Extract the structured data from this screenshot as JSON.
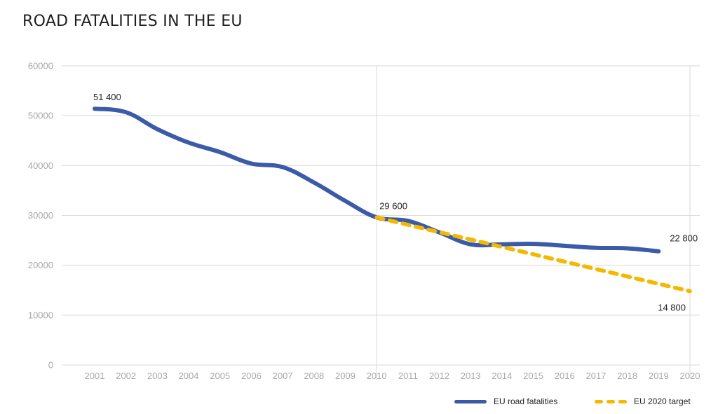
{
  "chart_data": {
    "type": "line",
    "title": "ROAD FATALITIES IN THE EU",
    "xlabel": "",
    "ylabel": "",
    "x": [
      "2001",
      "2002",
      "2003",
      "2004",
      "2005",
      "2006",
      "2007",
      "2008",
      "2009",
      "2010",
      "2011",
      "2012",
      "2013",
      "2014",
      "2015",
      "2016",
      "2017",
      "2018",
      "2019",
      "2020"
    ],
    "ylim": [
      0,
      60000
    ],
    "yticks": [
      "0",
      "10000",
      "20000",
      "30000",
      "40000",
      "50000",
      "60000"
    ],
    "grid": "horizontal",
    "vertical_reference_years": [
      "2010",
      "2020"
    ],
    "series": [
      {
        "name": "EU road fatalities",
        "color": "#3b5ba9",
        "style": "solid",
        "values": [
          51400,
          50700,
          47300,
          44600,
          42700,
          40400,
          39700,
          36600,
          32900,
          29600,
          28900,
          26600,
          24200,
          24200,
          24300,
          23900,
          23500,
          23400,
          22800,
          null
        ]
      },
      {
        "name": "EU 2020 target",
        "color": "#f5b800",
        "style": "dashed",
        "values": [
          null,
          null,
          null,
          null,
          null,
          null,
          null,
          null,
          null,
          29600,
          28120,
          26640,
          25160,
          23680,
          22200,
          20720,
          19240,
          17760,
          16280,
          14800
        ]
      }
    ],
    "annotations": [
      {
        "text": "51 400",
        "year": "2001",
        "value": 51400,
        "series": "EU road fatalities"
      },
      {
        "text": "29 600",
        "year": "2010",
        "value": 29600,
        "series": "EU road fatalities"
      },
      {
        "text": "22 800",
        "year": "2019",
        "value": 22800,
        "series": "EU road fatalities"
      },
      {
        "text": "14 800",
        "year": "2020",
        "value": 14800,
        "series": "EU 2020 target"
      }
    ],
    "legend": {
      "placement": "bottom-right",
      "entries": [
        "EU road fatalities",
        "EU 2020 target"
      ]
    }
  }
}
